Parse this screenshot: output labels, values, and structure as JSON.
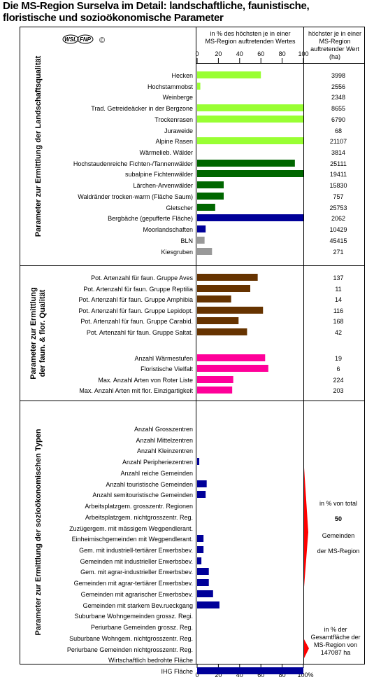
{
  "title": "Die MS-Region Surselva im Detail: landschaftliche, faunistische, floristische und sozioökonomische Parameter",
  "logo": {
    "wsl": "WSL",
    "fnp": "FNP",
    "copyright": "©"
  },
  "header": {
    "pct_label": "in % des höchsten je in einer MS-Region auftretenden Wertes",
    "max_label": "höchster je in einer MS-Region auftretender Wert (ha)"
  },
  "colors": {
    "light_green": "#99ff33",
    "dark_green": "#006600",
    "blue": "#000099",
    "gray": "#999999",
    "brown": "#663300",
    "pink": "#ff0099",
    "red": "#ff0000"
  },
  "chart_data": {
    "type": "bar",
    "orientation": "horizontal",
    "xlim": [
      0,
      100
    ],
    "x_ticks": [
      "0",
      "20",
      "40",
      "60",
      "80",
      "100"
    ],
    "x_ticks_bottom": [
      "0",
      "20",
      "40",
      "60",
      "80",
      "100%"
    ],
    "sections": [
      {
        "label": "Parameter zur Ermittlung der Landschaftsqualität",
        "rows": [
          {
            "label": "Hecken",
            "value": 60,
            "max": "3998",
            "color": "light_green"
          },
          {
            "label": "Hochstammobst",
            "value": 3,
            "max": "2556",
            "color": "light_green"
          },
          {
            "label": "Weinberge",
            "value": 0,
            "max": "2348",
            "color": "light_green"
          },
          {
            "label": "Trad. Getreideäcker in der Bergzone",
            "value": 100,
            "max": "8655",
            "color": "light_green"
          },
          {
            "label": "Trockenrasen",
            "value": 100,
            "max": "6790",
            "color": "light_green"
          },
          {
            "label": "Juraweide",
            "value": 0,
            "max": "68",
            "color": "light_green"
          },
          {
            "label": "Alpine Rasen",
            "value": 100,
            "max": "21107",
            "color": "light_green"
          },
          {
            "label": "Wärmelieb. Wälder",
            "value": 0,
            "max": "3814",
            "color": "dark_green"
          },
          {
            "label": "Hochstaudenreiche Fichten-/Tannenwälder",
            "value": 92,
            "max": "25111",
            "color": "dark_green"
          },
          {
            "label": "subalpine Fichtenwälder",
            "value": 100,
            "max": "19411",
            "color": "dark_green"
          },
          {
            "label": "Lärchen-Arvenwälder",
            "value": 25,
            "max": "15830",
            "color": "dark_green"
          },
          {
            "label": "Waldränder trocken-warm (Fläche Saum)",
            "value": 25,
            "max": "757",
            "color": "dark_green"
          },
          {
            "label": "Gletscher",
            "value": 17,
            "max": "25753",
            "color": "dark_green"
          },
          {
            "label": "Bergbäche (gepufferte Fläche)",
            "value": 100,
            "max": "2062",
            "color": "blue"
          },
          {
            "label": "Moorlandschaften",
            "value": 8,
            "max": "10429",
            "color": "blue"
          },
          {
            "label": "BLN",
            "value": 7,
            "max": "45415",
            "color": "gray"
          },
          {
            "label": "Kiesgruben",
            "value": 14,
            "max": "271",
            "color": "gray"
          }
        ]
      },
      {
        "label": "Parameter zur Ermittlung der faun. & flor. Qualität",
        "rows": [
          {
            "label": "Pot. Artenzahl für faun. Gruppe Aves",
            "value": 57,
            "max": "137",
            "color": "brown"
          },
          {
            "label": "Pot. Artenzahl für faun. Gruppe Reptilia",
            "value": 50,
            "max": "11",
            "color": "brown"
          },
          {
            "label": "Pot. Artenzahl für faun. Gruppe Amphibia",
            "value": 32,
            "max": "14",
            "color": "brown"
          },
          {
            "label": "Pot. Artenzahl für faun. Gruppe Lepidopt.",
            "value": 62,
            "max": "116",
            "color": "brown"
          },
          {
            "label": "Pot. Artenzahl für faun. Gruppe Carabid.",
            "value": 39,
            "max": "168",
            "color": "brown"
          },
          {
            "label": "Pot. Artenzahl für faun. Gruppe Saltat.",
            "value": 47,
            "max": "42",
            "color": "brown"
          },
          {
            "label": "Anzahl Wärmestufen",
            "value": 64,
            "max": "19",
            "color": "pink"
          },
          {
            "label": "Floristische Vielfalt",
            "value": 67,
            "max": "6",
            "color": "pink"
          },
          {
            "label": "Max. Anzahl Arten von Roter Liste",
            "value": 34,
            "max": "224",
            "color": "pink"
          },
          {
            "label": "Max. Anzahl Arten mit flor. Einzigartigkeit",
            "value": 33,
            "max": "203",
            "color": "pink"
          }
        ]
      },
      {
        "label": "Parameter zur Ermittlung der sozioökonomischen Typen",
        "rows": [
          {
            "label": "Anzahl Grosszentren",
            "value": 0,
            "color": "blue"
          },
          {
            "label": "Anzahl Mittelzentren",
            "value": 0,
            "color": "blue"
          },
          {
            "label": "Anzahl Kleinzentren",
            "value": 0,
            "color": "blue"
          },
          {
            "label": "Anzahl Peripheriezentren",
            "value": 2,
            "color": "blue"
          },
          {
            "label": "Anzahl reiche Gemeinden",
            "value": 0,
            "color": "blue"
          },
          {
            "label": "Anzahl touristische Gemeinden",
            "value": 9,
            "color": "blue"
          },
          {
            "label": "Anzahl semitouristische Gemeinden",
            "value": 8,
            "color": "blue"
          },
          {
            "label": "Arbeitsplatzgem. grosszentr. Regionen",
            "value": 0,
            "color": "blue"
          },
          {
            "label": "Arbeitsplatzgem. nichtgrosszentr. Reg.",
            "value": 0,
            "color": "blue"
          },
          {
            "label": "Zuzügergem. mit mässigem Wegpendlerant.",
            "value": 0,
            "color": "blue"
          },
          {
            "label": "Einheimischgemeinden mit Wegpendlerant.",
            "value": 6,
            "color": "blue"
          },
          {
            "label": "Gem. mit industriell-tertiärer Erwerbsbev.",
            "value": 6,
            "color": "blue"
          },
          {
            "label": "Gemeinden mit industrieller Erwerbsbev.",
            "value": 4,
            "color": "blue"
          },
          {
            "label": "Gem. mit agrar-industrieller Erwerbsbev.",
            "value": 11,
            "color": "blue"
          },
          {
            "label": "Gemeinden mit agrar-tertiärer Erwerbsbev.",
            "value": 11,
            "color": "blue"
          },
          {
            "label": "Gemeinden mit agrarischer Erwerbsbev.",
            "value": 15,
            "color": "blue"
          },
          {
            "label": "Gemeinden mit starkem Bev.rueckgang",
            "value": 21,
            "color": "blue"
          },
          {
            "label": "Suburbane Wohngemeinden grossz. Regi.",
            "value": 0,
            "color": "blue"
          },
          {
            "label": "Periurbane Gemeinden grossz. Reg.",
            "value": 0,
            "color": "blue"
          },
          {
            "label": "Suburbane Wohngem. nichtgrosszentr. Reg.",
            "value": 0,
            "color": "blue"
          },
          {
            "label": "Periurbane Gemeinden nichtgrosszentr. Reg.",
            "value": 0,
            "color": "blue"
          },
          {
            "label": "Wirtschaftlich bedrohte Fläche",
            "value": 0,
            "color": "blue"
          },
          {
            "label": "IHG Fläche",
            "value": 100,
            "color": "blue"
          }
        ],
        "annotations": {
          "gem_pct_label": "in % von total",
          "gem_total": "50",
          "gem_unit": "Gemeinden",
          "gem_region": "der MS-Region",
          "area_label": "in % der Gesamtfläche der MS-Region von 147087 ha"
        }
      }
    ]
  }
}
